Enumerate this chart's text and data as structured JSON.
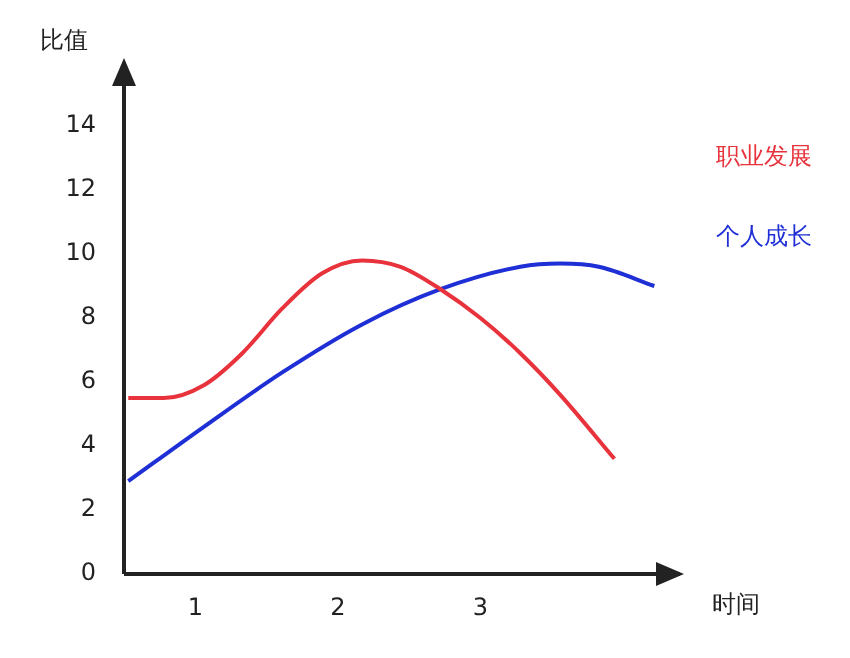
{
  "chart_data": {
    "type": "line",
    "xlabel": "时间",
    "ylabel": "比值",
    "xlim": [
      0.5,
      4.4
    ],
    "xticks": [
      1,
      2,
      3
    ],
    "ylim": [
      0,
      16
    ],
    "yticks": [
      0,
      2,
      4,
      6,
      8,
      10,
      12,
      14
    ],
    "grid": false,
    "legend": "right",
    "marker": "none",
    "line_style": "solid",
    "series": [
      {
        "name": "职业发展",
        "color": "#e8323c",
        "x": [
          0.53,
          0.78,
          1.06,
          1.33,
          1.61,
          1.89,
          2.17,
          2.44,
          2.72,
          3.0,
          3.28,
          3.56,
          3.94
        ],
        "values": [
          5.5,
          5.5,
          5.9,
          6.9,
          8.3,
          9.4,
          9.8,
          9.6,
          8.9,
          8.0,
          6.9,
          5.6,
          3.6
        ]
      },
      {
        "name": "个人成长",
        "color": "#1f2fd6",
        "x": [
          0.53,
          1.06,
          1.61,
          2.17,
          2.72,
          3.28,
          3.56,
          3.83,
          4.22
        ],
        "values": [
          2.9,
          4.6,
          6.3,
          7.8,
          8.9,
          9.6,
          9.7,
          9.6,
          9.0
        ]
      }
    ]
  }
}
